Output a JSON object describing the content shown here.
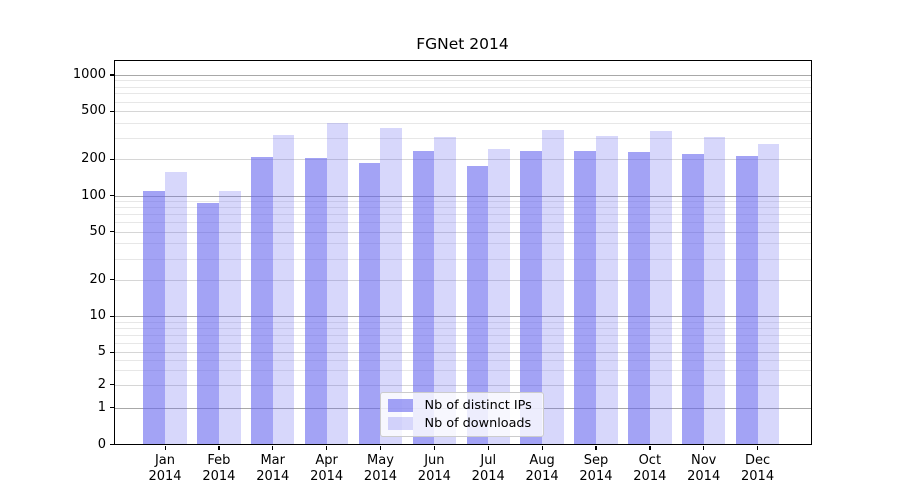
{
  "title": "FGNet 2014",
  "legend": {
    "items": [
      {
        "key": "distinct-ips",
        "label": "Nb of distinct IPs"
      },
      {
        "key": "downloads",
        "label": "Nb of downloads"
      }
    ]
  },
  "colors": {
    "distinct_ips_bar": "rgba(102,102,238,0.60)",
    "downloads_bar": "rgba(102,102,238,0.26)",
    "grid_major": "#a8a8a8",
    "grid_minor": "#d6d6d6",
    "grid_faint": "#e7e7e7",
    "axis": "#000000"
  },
  "chart_data": {
    "type": "bar",
    "title": "FGNet 2014",
    "categories": [
      "Jan",
      "Feb",
      "Mar",
      "Apr",
      "May",
      "Jun",
      "Jul",
      "Aug",
      "Sep",
      "Oct",
      "Nov",
      "Dec"
    ],
    "year": "2014",
    "series": [
      {
        "name": "Nb of distinct IPs",
        "values": [
          110,
          87,
          207,
          204,
          187,
          236,
          177,
          234,
          233,
          230,
          222,
          212
        ]
      },
      {
        "name": "Nb of downloads",
        "values": [
          158,
          110,
          320,
          395,
          365,
          304,
          243,
          346,
          314,
          344,
          306,
          266
        ]
      }
    ],
    "y_scale": "symlog",
    "y_ticks": [
      0,
      1,
      2,
      5,
      10,
      20,
      50,
      100,
      200,
      500,
      1000
    ],
    "y_minor_gridlines": [
      3,
      4,
      6,
      7,
      8,
      9,
      30,
      40,
      60,
      70,
      80,
      90,
      300,
      400,
      600,
      700,
      800,
      900
    ],
    "y_major_gridlines": [
      1,
      10,
      100,
      1000
    ],
    "ylim": [
      0,
      1350
    ],
    "xlabel": "",
    "ylabel": "",
    "grid": "both",
    "legend_position": "lower center"
  }
}
